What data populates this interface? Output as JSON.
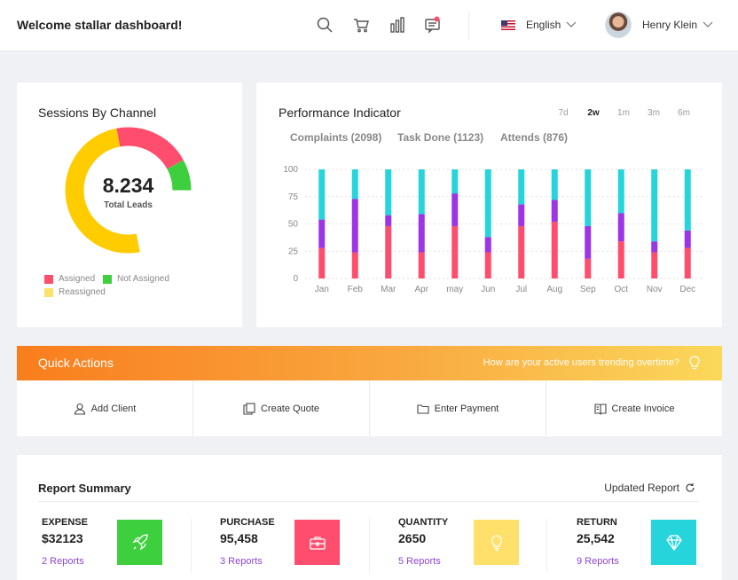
{
  "header": {
    "brand": "Welcome stallar dashboard!",
    "language": "English",
    "user_name": "Henry Klein",
    "icons": [
      "search-icon",
      "cart-icon",
      "bar-chart-icon",
      "message-icon"
    ]
  },
  "sessions": {
    "title": "Sessions By Channel",
    "value": "8.234",
    "value_label": "Total Leads",
    "legend": [
      {
        "label": "Assigned",
        "color": "#ff4d6d"
      },
      {
        "label": "Not Assigned",
        "color": "#3ecf3e"
      },
      {
        "label": "Reassigned",
        "color": "#ffe06b"
      }
    ],
    "chart_data": {
      "type": "pie",
      "labels": [
        "Assigned",
        "Not Assigned",
        "Reassigned"
      ],
      "values": [
        20,
        30,
        50
      ],
      "colors": [
        "#ff4d6d",
        "#3ecf3e",
        "#ffcc00"
      ]
    }
  },
  "performance": {
    "title": "Performance Indicator",
    "ranges": [
      "7d",
      "2w",
      "1m",
      "3m",
      "6m"
    ],
    "active_range": "2w",
    "stats": [
      "Complaints (2098)",
      "Task Done (1123)",
      "Attends (876)"
    ],
    "chart_data": {
      "type": "bar",
      "stacked": true,
      "categories": [
        "Jan",
        "Feb",
        "Mar",
        "Apr",
        "may",
        "Jun",
        "Jul",
        "Aug",
        "Sep",
        "Oct",
        "Nov",
        "Dec"
      ],
      "yticks": [
        "100",
        "75",
        "50",
        "25",
        "0"
      ],
      "ylim": [
        0,
        100
      ],
      "series": [
        {
          "color": "#ff4d6d",
          "values": [
            28,
            24,
            48,
            24,
            48,
            24,
            48,
            52,
            18,
            34,
            24,
            28
          ]
        },
        {
          "color": "#9b35e6",
          "values": [
            26,
            49,
            10,
            35,
            30,
            14,
            20,
            20,
            30,
            26,
            10,
            16
          ]
        },
        {
          "color": "#26d4dc",
          "values": [
            46,
            27,
            42,
            41,
            22,
            62,
            32,
            28,
            52,
            40,
            66,
            56
          ]
        }
      ]
    }
  },
  "quick_actions": {
    "title": "Quick Actions",
    "question": "How are your active users trending overtime?",
    "actions": [
      {
        "label": "Add Client",
        "icon": "user-icon"
      },
      {
        "label": "Create Quote",
        "icon": "copy-icon"
      },
      {
        "label": "Enter Payment",
        "icon": "folder-icon"
      },
      {
        "label": "Create Invoice",
        "icon": "book-icon"
      }
    ]
  },
  "report": {
    "title": "Report Summary",
    "updated": "Updated Report",
    "items": [
      {
        "name": "EXPENSE",
        "value": "$32123",
        "link": "2 Reports",
        "color": "#3ecf3e",
        "icon": "rocket-icon"
      },
      {
        "name": "PURCHASE",
        "value": "95,458",
        "link": "3 Reports",
        "color": "#ff4d6d",
        "icon": "briefcase-icon"
      },
      {
        "name": "QUANTITY",
        "value": "2650",
        "link": "5 Reports",
        "color": "#ffe06b",
        "icon": "bulb-icon"
      },
      {
        "name": "RETURN",
        "value": "25,542",
        "link": "9 Reports",
        "color": "#26d4dc",
        "icon": "diamond-icon"
      }
    ]
  }
}
